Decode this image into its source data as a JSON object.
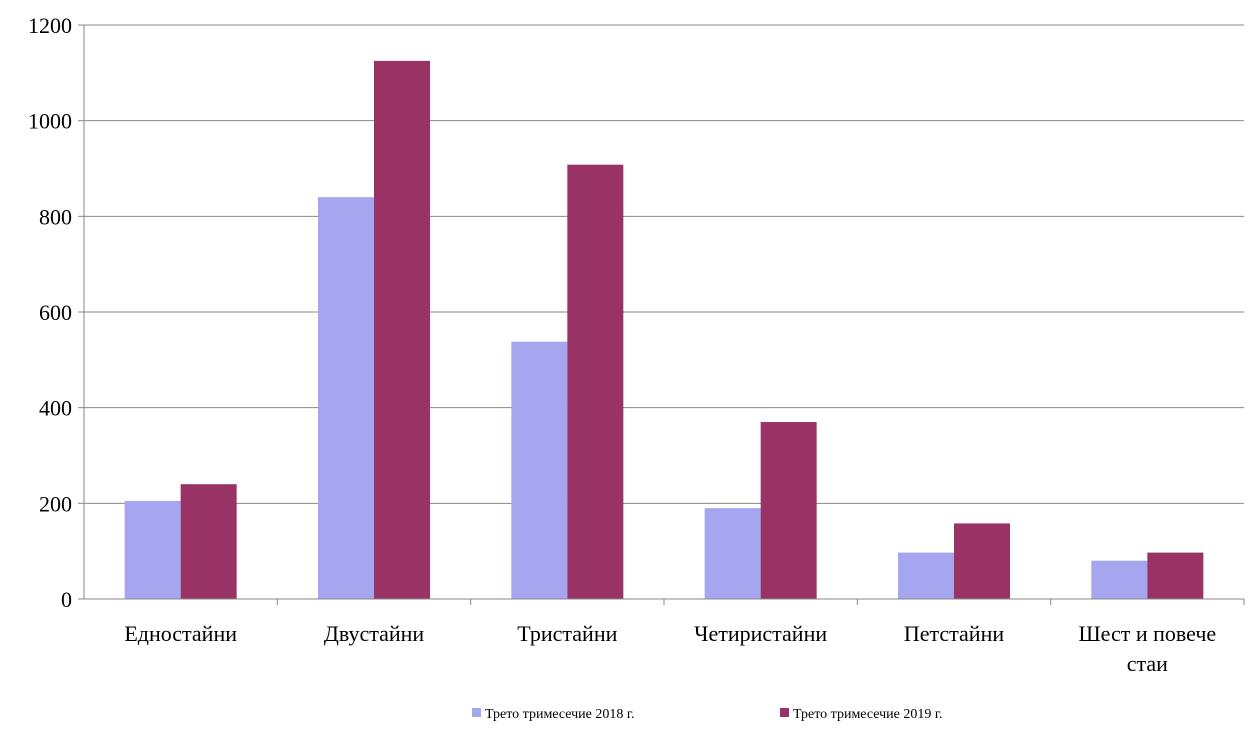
{
  "chart_data": {
    "type": "bar",
    "categories": [
      "Едностайни",
      "Двустайни",
      "Тристайни",
      "Четиристайни",
      "Петстайни",
      "Шест и повече стаи"
    ],
    "category_lines": [
      [
        "Едностайни"
      ],
      [
        "Двустайни"
      ],
      [
        "Тристайни"
      ],
      [
        "Четиристайни"
      ],
      [
        "Петстайни"
      ],
      [
        "Шест и повече",
        "стаи"
      ]
    ],
    "series": [
      {
        "name": "Трето тримесечие 2018 г.",
        "color": "#a5a5f0",
        "values": [
          205,
          840,
          538,
          190,
          97,
          80
        ]
      },
      {
        "name": "Трето тримесечие 2019 г.",
        "color": "#993366",
        "values": [
          240,
          1125,
          908,
          370,
          158,
          97
        ]
      }
    ],
    "title": "",
    "xlabel": "",
    "ylabel": "",
    "ylim": [
      0,
      1200
    ],
    "yticks": [
      "0",
      "200",
      "400",
      "600",
      "800",
      "1000",
      "1200"
    ],
    "grid": true,
    "legend_position": "bottom"
  },
  "colors": {
    "gridline": "#888888",
    "axis": "#888888"
  }
}
